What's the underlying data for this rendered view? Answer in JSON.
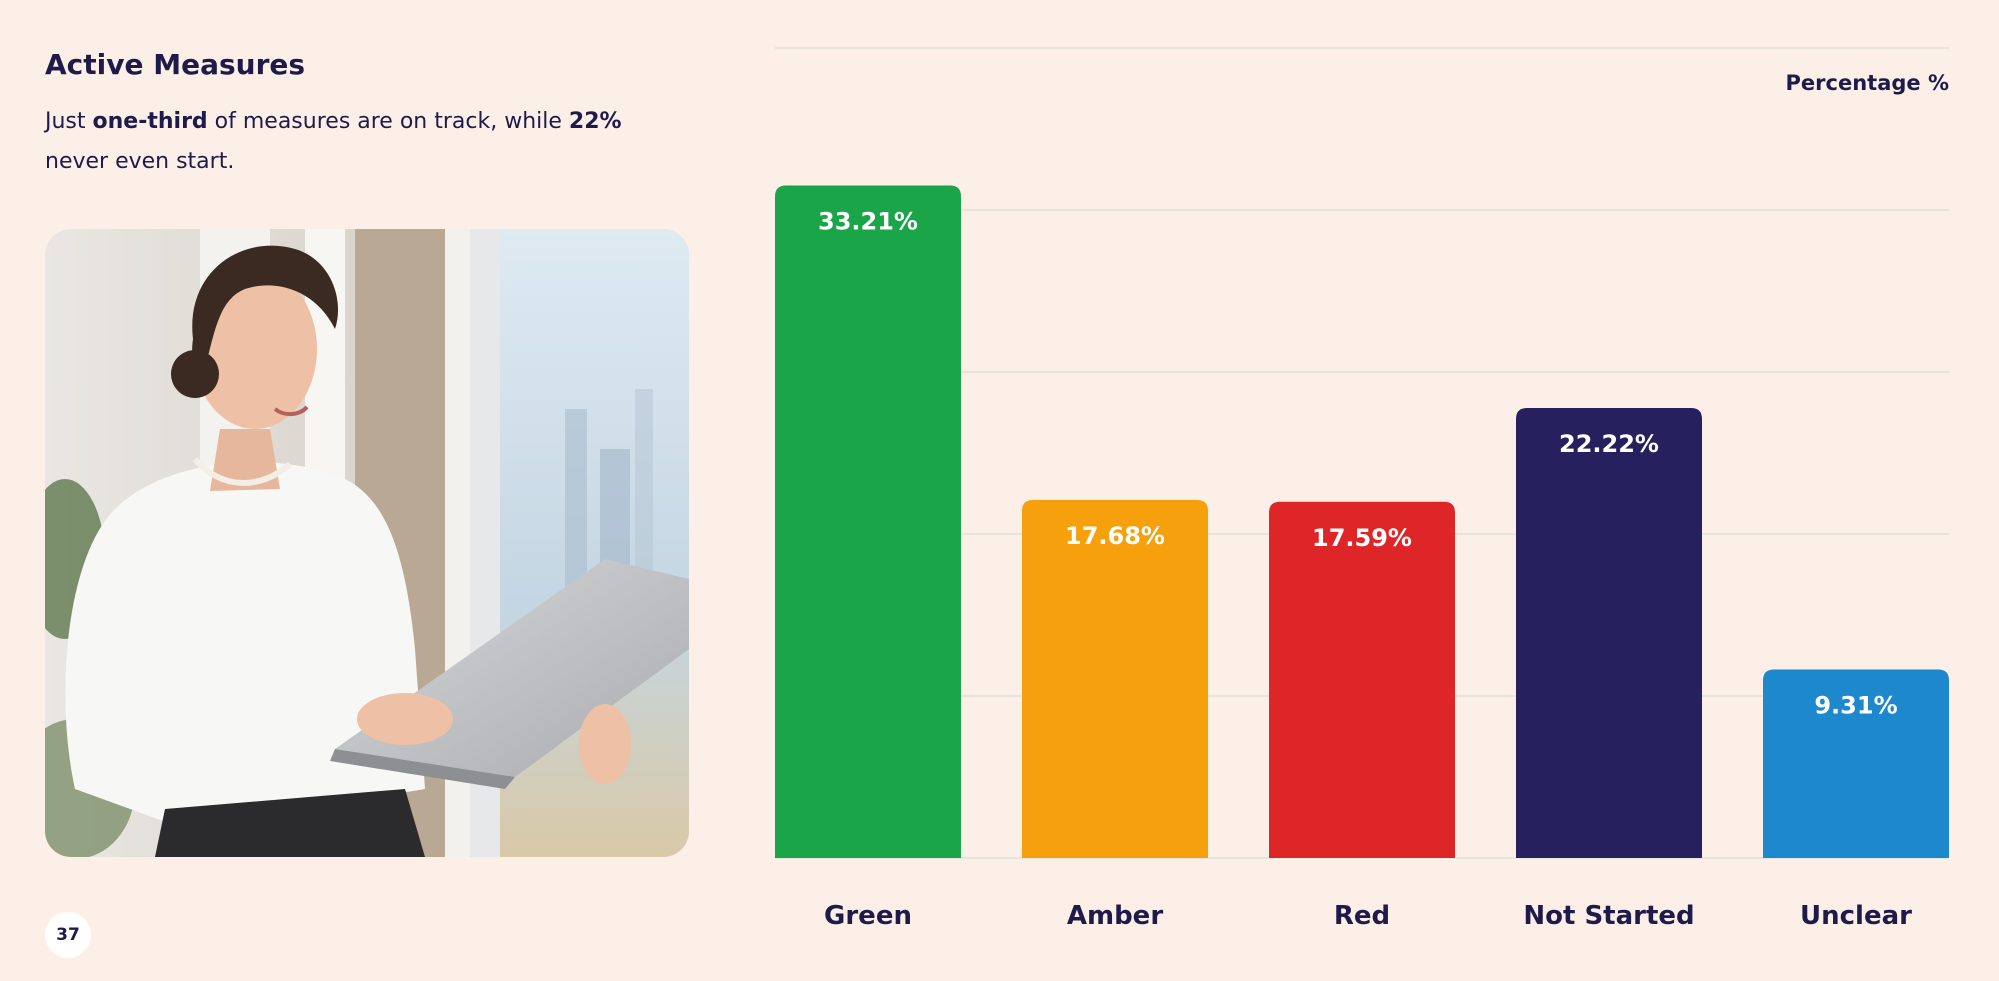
{
  "header": {
    "title": "Active Measures",
    "subtitle_parts": [
      {
        "text": "Just ",
        "bold": false
      },
      {
        "text": "one-third",
        "bold": true
      },
      {
        "text": " of measures are on track, while ",
        "bold": false
      },
      {
        "text": "22%",
        "bold": true
      },
      {
        "text": " never even start.",
        "bold": false
      }
    ]
  },
  "page_number": "37",
  "photo": {
    "subject": "woman-with-laptop-icon"
  },
  "chart_data": {
    "type": "bar",
    "title": "",
    "xlabel": "",
    "ylabel": "Percentage %",
    "categories": [
      "Green",
      "Amber",
      "Red",
      "Not Started",
      "Unclear"
    ],
    "values": [
      33.21,
      17.68,
      17.59,
      22.22,
      9.31
    ],
    "value_labels": [
      "33.21%",
      "17.68%",
      "17.59%",
      "22.22%",
      "9.31%"
    ],
    "colors": [
      "#1aa548",
      "#f5a00c",
      "#de2628",
      "#26215e",
      "#1e88cc"
    ],
    "ylim": [
      0,
      40
    ],
    "grid": true,
    "gridline_color": "#dfe2da"
  }
}
